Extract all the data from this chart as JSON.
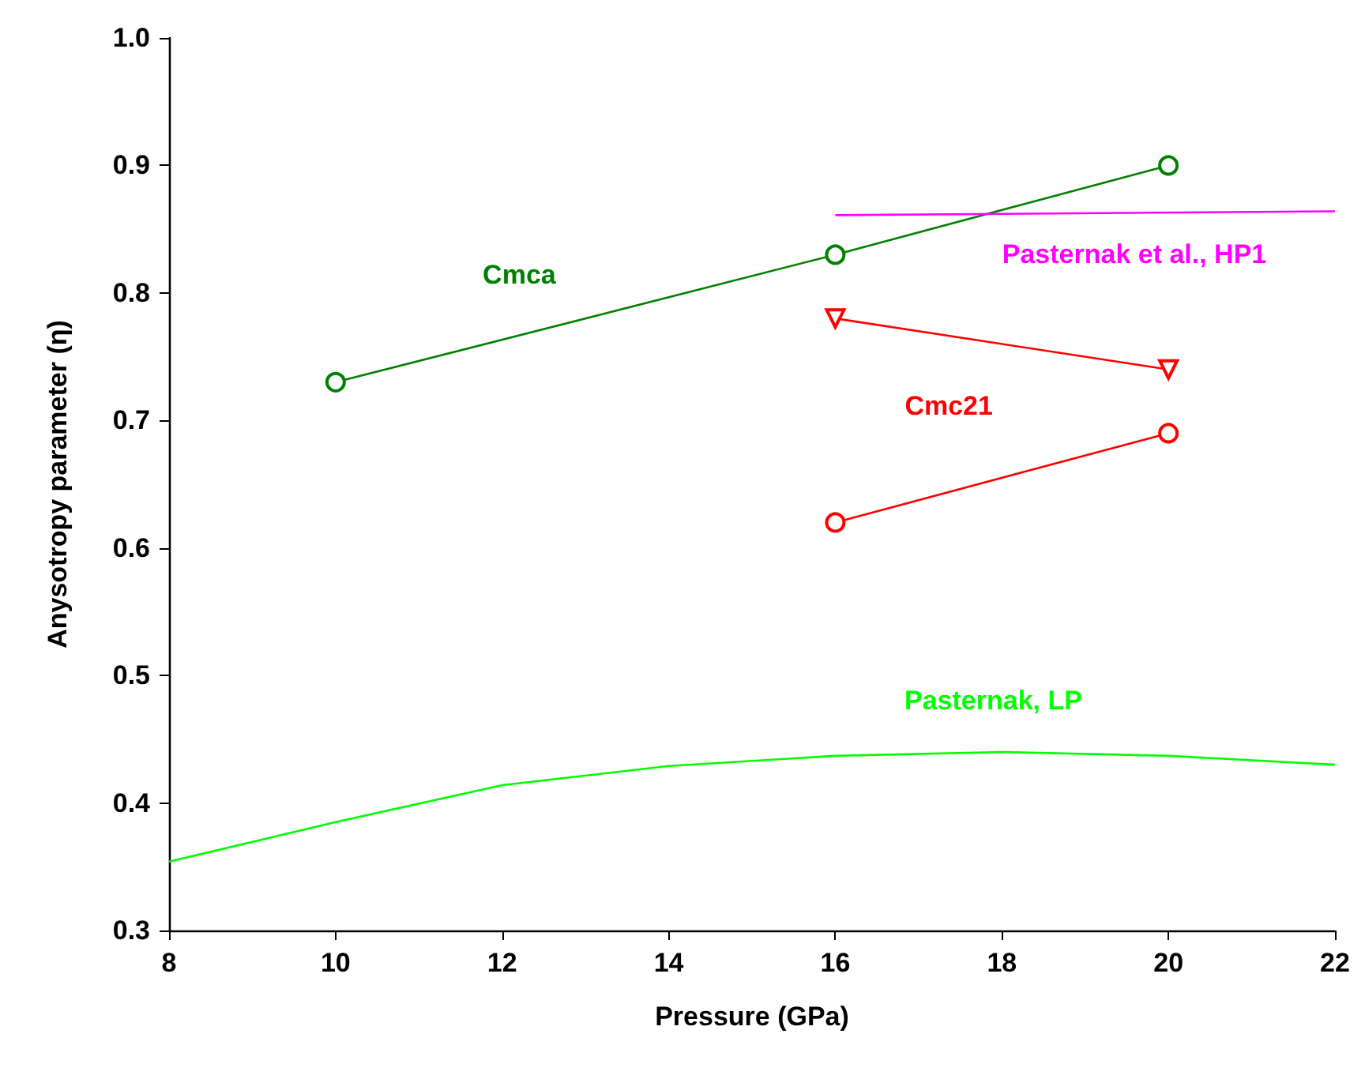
{
  "chart_data": {
    "type": "line",
    "xlabel": "Pressure (GPa)",
    "ylabel": "Anysotropy parameter (η)",
    "xlim": [
      8,
      22
    ],
    "xticks": [
      8,
      10,
      12,
      14,
      16,
      18,
      20,
      22
    ],
    "ylim": [
      0.3,
      1.0
    ],
    "yticks": [
      0.3,
      0.4,
      0.5,
      0.6,
      0.7,
      0.8,
      0.9,
      {
        "value": 1.0,
        "label": "1.0"
      }
    ],
    "grid": false,
    "legend": false,
    "series": [
      {
        "name": "Cmca",
        "color": "#008000",
        "marker": "circle",
        "x": [
          10,
          16,
          20
        ],
        "values": [
          0.73,
          0.83,
          0.9
        ]
      },
      {
        "name": "Pasternak et al., HP1",
        "color": "#ff00ff",
        "marker": "none",
        "x": [
          16,
          22
        ],
        "values": [
          0.861,
          0.864
        ]
      },
      {
        "name": "Cmc21",
        "color": "#ff0000",
        "marker": "triangle",
        "x": [
          16,
          20
        ],
        "values": [
          0.78,
          0.74
        ]
      },
      {
        "color": "#ff0000",
        "marker": "circle",
        "x": [
          16,
          20
        ],
        "values": [
          0.62,
          0.69
        ]
      },
      {
        "name": "Pasternak, LP",
        "color": "#00ff00",
        "marker": "none",
        "x": [
          8,
          10,
          12,
          14,
          16,
          18,
          20,
          22
        ],
        "values": [
          0.354,
          0.385,
          0.414,
          0.429,
          0.437,
          0.44,
          0.437,
          0.43
        ]
      }
    ]
  }
}
